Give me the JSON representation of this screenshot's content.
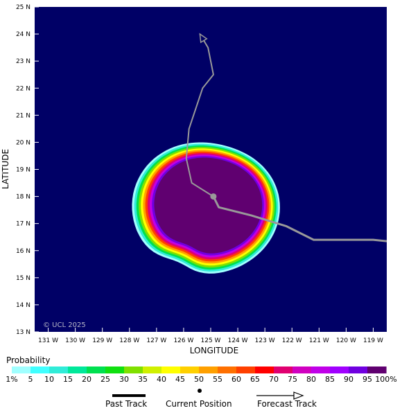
{
  "map": {
    "lon_range": [
      -131.5,
      -118.5
    ],
    "lat_range": [
      13,
      25
    ],
    "x_ticks": [
      {
        "value": -131,
        "label": "131 W"
      },
      {
        "value": -130,
        "label": "130 W"
      },
      {
        "value": -129,
        "label": "129 W"
      },
      {
        "value": -128,
        "label": "128 W"
      },
      {
        "value": -127,
        "label": "127 W"
      },
      {
        "value": -126,
        "label": "126 W"
      },
      {
        "value": -125,
        "label": "125 W"
      },
      {
        "value": -124,
        "label": "124 W"
      },
      {
        "value": -123,
        "label": "123 W"
      },
      {
        "value": -122,
        "label": "122 W"
      },
      {
        "value": -121,
        "label": "121 W"
      },
      {
        "value": -120,
        "label": "120 W"
      },
      {
        "value": -119,
        "label": "119 W"
      }
    ],
    "y_ticks": [
      {
        "value": 13,
        "label": "13 N"
      },
      {
        "value": 14,
        "label": "14 N"
      },
      {
        "value": 15,
        "label": "15 N"
      },
      {
        "value": 16,
        "label": "16 N"
      },
      {
        "value": 17,
        "label": "17 N"
      },
      {
        "value": 18,
        "label": "18 N"
      },
      {
        "value": 19,
        "label": "19 N"
      },
      {
        "value": 20,
        "label": "20 N"
      },
      {
        "value": 21,
        "label": "21 N"
      },
      {
        "value": 22,
        "label": "22 N"
      },
      {
        "value": 23,
        "label": "23 N"
      },
      {
        "value": 24,
        "label": "24 N"
      },
      {
        "value": 25,
        "label": "25 N"
      }
    ],
    "xlabel": "LONGITUDE",
    "ylabel": "LATITUDE",
    "copyright": "© UCL 2025",
    "background_color": "#000066",
    "track_color": "#999999",
    "current_position": {
      "lon": -124.9,
      "lat": 18.0
    },
    "past_track": [
      [
        -118.5,
        16.35
      ],
      [
        -119.0,
        16.4
      ],
      [
        -120.0,
        16.4
      ],
      [
        -121.2,
        16.4
      ],
      [
        -122.2,
        16.9
      ],
      [
        -123.5,
        17.3
      ],
      [
        -124.7,
        17.6
      ],
      [
        -124.9,
        18.0
      ]
    ],
    "forecast_track": [
      [
        -124.9,
        18.0
      ],
      [
        -125.7,
        18.5
      ],
      [
        -125.9,
        19.4
      ],
      [
        -125.8,
        20.5
      ],
      [
        -125.3,
        22.0
      ],
      [
        -124.9,
        22.5
      ],
      [
        -125.1,
        23.5
      ],
      [
        -125.4,
        24.0
      ]
    ],
    "probability_levels": [
      1,
      10,
      20,
      30,
      40,
      50,
      60,
      70,
      80,
      90,
      95
    ]
  },
  "legend": {
    "title": "Probability",
    "labels": [
      "1%",
      "5",
      "10",
      "15",
      "20",
      "25",
      "30",
      "35",
      "40",
      "45",
      "50",
      "55",
      "60",
      "65",
      "70",
      "75",
      "80",
      "85",
      "90",
      "95",
      "100%"
    ],
    "colors": [
      "#a0ffff",
      "#40ffff",
      "#30ecd8",
      "#00e89a",
      "#00e050",
      "#10e010",
      "#80e000",
      "#d0f000",
      "#ffff00",
      "#ffd000",
      "#ffa000",
      "#ff7000",
      "#ff4000",
      "#ff0000",
      "#e00070",
      "#d000c0",
      "#c000e8",
      "#a000ff",
      "#7000e0",
      "#600070"
    ]
  },
  "key": {
    "past_track": "Past Track",
    "current_position": "Current Position",
    "forecast_track": "Forecast Track"
  }
}
